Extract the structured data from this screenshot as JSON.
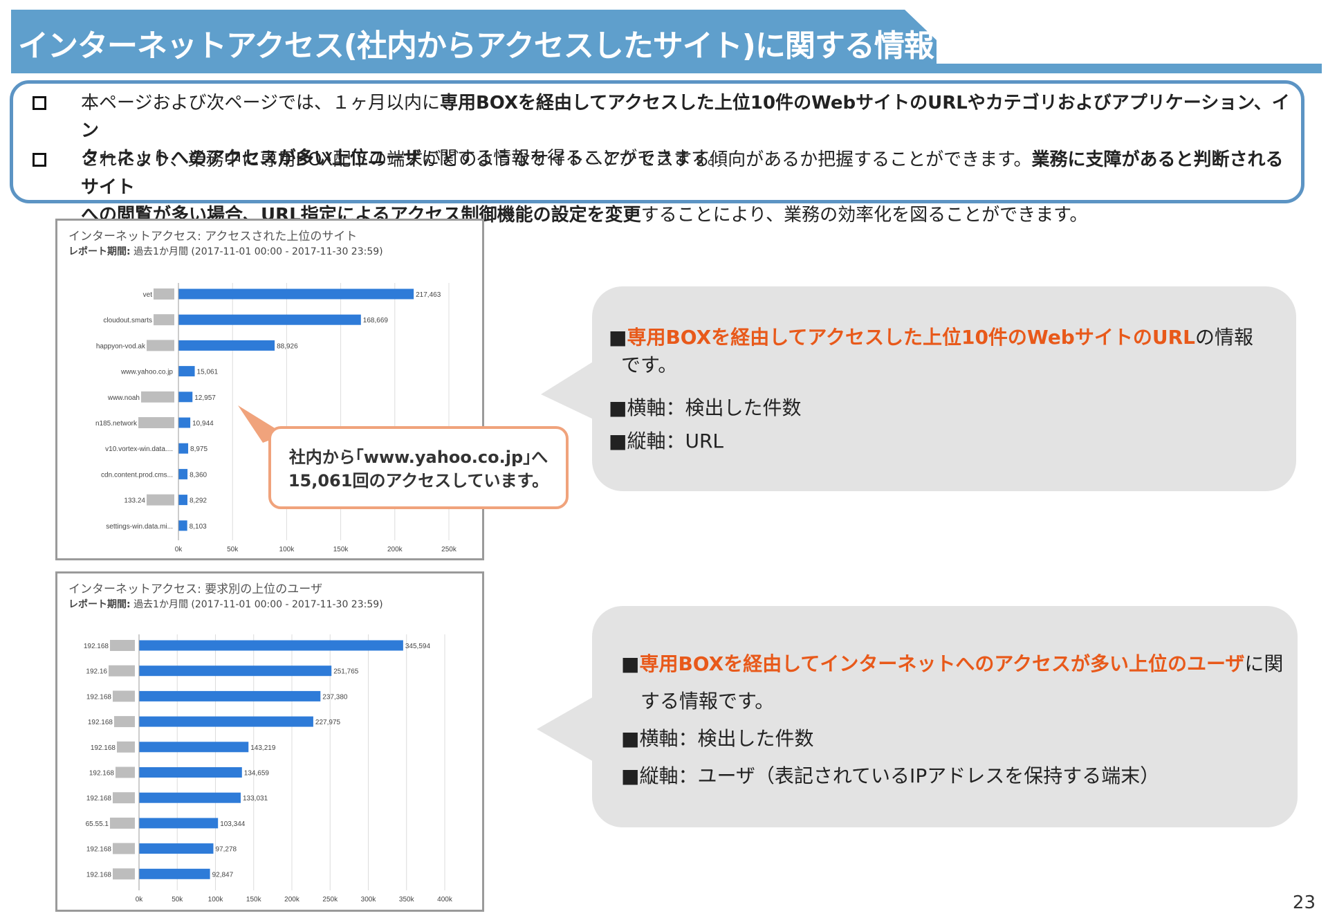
{
  "colors": {
    "header_blue": "#5f9fcc",
    "box_border": "#5c94c4",
    "bar_blue": "#2e7bd8",
    "redaction_gray": "#bdbdbd",
    "highlight_orange": "#e8591a",
    "bubble_gray": "#e3e3e3",
    "callout_border": "#f0a37c"
  },
  "header": {
    "title": "インターネットアクセス(社内からアクセスしたサイト)に関する情報"
  },
  "intro": {
    "item1_line1_a": "本ページおよび次ページでは、１ヶ月以内に",
    "item1_line1_b": "専用BOXを経由してアクセスした上位10件のWebサイトのURLやカテゴリおよびアプリケーション、イン",
    "item1_line2_a": "ターネットへのアクセスが多い上位ユーザ",
    "item1_line2_b": "に関する情報を得ることができます。",
    "item2_line1_a": "これにより、業務中に専用BOX配下の端末がどのようなサイトへアクセスする傾向があるか把握することができます。",
    "item2_line1_b": "業務に支障があると判断されるサイト",
    "item2_line2_a": "への閲覧が多い場合、URL指定によるアクセス制御機能の設定を変更",
    "item2_line2_b": "することにより、業務の効率化を図ることができます。"
  },
  "chart1": {
    "title": "インターネットアクセス: アクセスされた上位のサイト",
    "period_label": "レポート期間:",
    "period_value": "過去1か月間 (2017-11-01 00:00 - 2017-11-30 23:59)"
  },
  "chart2": {
    "title": "インターネットアクセス: 要求別の上位のユーザ",
    "period_label": "レポート期間:",
    "period_value": "過去1か月間 (2017-11-01 00:00 - 2017-11-30 23:59)"
  },
  "chart_data": [
    {
      "type": "bar",
      "orientation": "horizontal",
      "title": "インターネットアクセス: アクセスされた上位のサイト",
      "categories": [
        "vet",
        "cloudout.smarts",
        "happyon-vod.ak",
        "www.yahoo.co.jp",
        "www.noah",
        "n185.network",
        "v10.vortex-win.data....",
        "cdn.content.prod.cms...",
        "133.24",
        "settings-win.data.mi..."
      ],
      "values": [
        217463,
        168669,
        88926,
        15061,
        12957,
        10944,
        8975,
        8360,
        8292,
        8103
      ],
      "value_labels": [
        "217,463",
        "168,669",
        "88,926",
        "15,061",
        "12,957",
        "10,944",
        "8,975",
        "8,360",
        "8,292",
        "8,103"
      ],
      "redacted_label_widths": [
        30,
        30,
        40,
        0,
        48,
        52,
        0,
        0,
        40,
        0
      ],
      "xlim": [
        0,
        250000
      ],
      "xticks": [
        "0k",
        "50k",
        "100k",
        "150k",
        "200k",
        "250k"
      ],
      "grid": true
    },
    {
      "type": "bar",
      "orientation": "horizontal",
      "title": "インターネットアクセス: 要求別の上位のユーザ",
      "categories": [
        "192.168",
        "192.16",
        "192.168",
        "192.168",
        "192.168",
        "192.168",
        "192.168",
        "65.55.1",
        "192.168",
        "192.168"
      ],
      "values": [
        345594,
        251765,
        237380,
        227975,
        143219,
        134659,
        133031,
        103344,
        97278,
        92847
      ],
      "value_labels": [
        "345,594",
        "251,765",
        "237,380",
        "227,975",
        "143,219",
        "134,659",
        "133,031",
        "103,344",
        "97,278",
        "92,847"
      ],
      "redacted_label_widths": [
        36,
        38,
        32,
        30,
        26,
        28,
        32,
        36,
        32,
        32
      ],
      "xlim": [
        0,
        400000
      ],
      "xticks": [
        "0k",
        "50k",
        "100k",
        "150k",
        "200k",
        "250k",
        "300k",
        "350k",
        "400k"
      ],
      "grid": true
    }
  ],
  "callout": {
    "line1": "社内から｢www.yahoo.co.jp｣へ",
    "line2": "15,061回のアクセスしています。"
  },
  "bubble1": {
    "line1_prefix": "■",
    "line1_highlight": "専用BOXを経由してアクセスした上位10件のWebサイトのURL",
    "line1_rest": "の情報",
    "line2": "です。",
    "line3": "■横軸：検出した件数",
    "line4": "■縦軸：URL"
  },
  "bubble2": {
    "line1_prefix": "■",
    "line1_highlight": "専用BOXを経由してインターネットへのアクセスが多い上位のユーザ",
    "line1_rest": "に関",
    "line2": "する情報です。",
    "line3": "■横軸：検出した件数",
    "line4": "■縦軸：ユーザ（表記されているIPアドレスを保持する端末）"
  },
  "page_number": "23"
}
